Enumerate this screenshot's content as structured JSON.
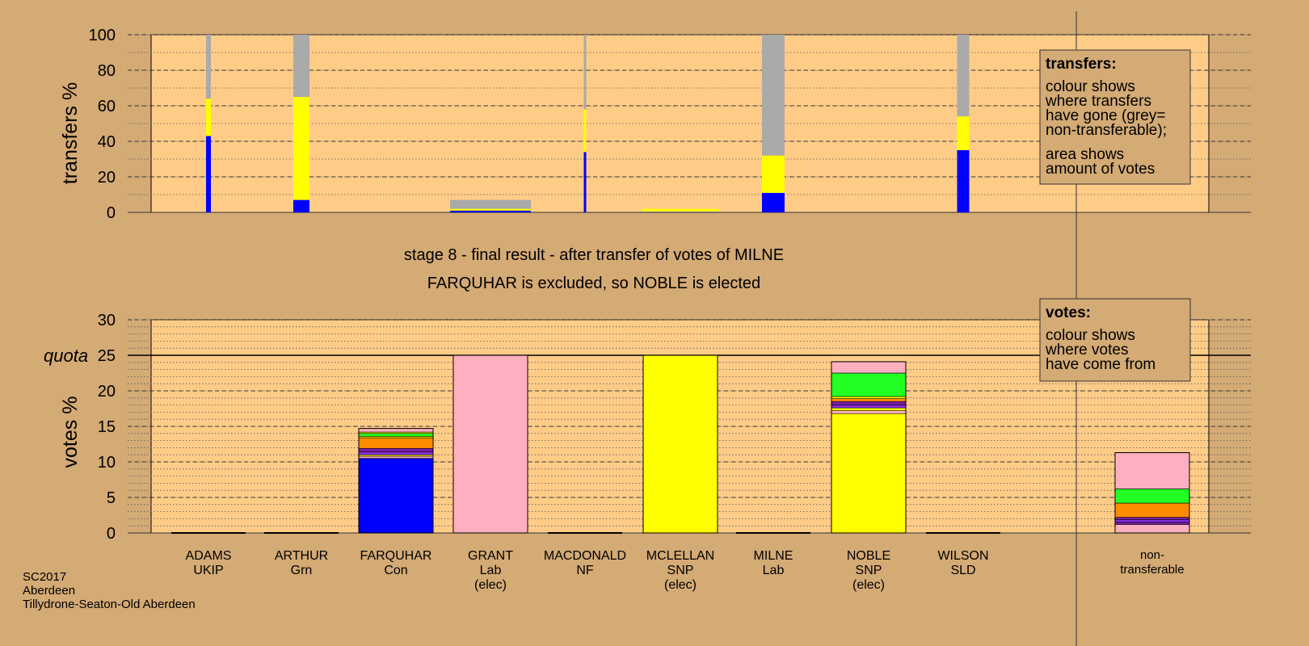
{
  "chart_data": [
    {
      "type": "bar",
      "name": "transfers",
      "ylabel": "transfers %",
      "ylim": [
        0,
        100
      ],
      "yticks": [
        0,
        20,
        40,
        60,
        80,
        100
      ],
      "bars": [
        {
          "candidate": "ADAMS",
          "width_weight": 0.06,
          "segments": [
            {
              "party": "Con",
              "to": 43
            },
            {
              "party": "SNP",
              "to": 64
            },
            {
              "party": "non-transferable",
              "to": 100
            }
          ]
        },
        {
          "candidate": "ARTHUR",
          "width_weight": 0.2,
          "segments": [
            {
              "party": "Con",
              "to": 7
            },
            {
              "party": "SNP",
              "to": 65
            },
            {
              "party": "non-transferable",
              "to": 100
            }
          ]
        },
        {
          "candidate": "GRANT",
          "width_weight": 1.0,
          "segments": [
            {
              "party": "Con",
              "to": 1
            },
            {
              "party": "SNP",
              "to": 2
            },
            {
              "party": "non-transferable",
              "to": 7
            }
          ]
        },
        {
          "candidate": "MACDONALD",
          "width_weight": 0.03,
          "segments": [
            {
              "party": "Con",
              "to": 34
            },
            {
              "party": "SNP",
              "to": 58
            },
            {
              "party": "non-transferable",
              "to": 100
            }
          ]
        },
        {
          "candidate": "MCLELLAN",
          "width_weight": 0.95,
          "segments": [
            {
              "party": "Con",
              "to": 0.3
            },
            {
              "party": "SNP",
              "to": 2
            }
          ]
        },
        {
          "candidate": "MILNE",
          "width_weight": 0.28,
          "segments": [
            {
              "party": "Con",
              "to": 11
            },
            {
              "party": "SNP",
              "to": 32
            },
            {
              "party": "non-transferable",
              "to": 100
            }
          ]
        },
        {
          "candidate": "WILSON",
          "width_weight": 0.15,
          "segments": [
            {
              "party": "Con",
              "to": 35
            },
            {
              "party": "SNP",
              "to": 54
            },
            {
              "party": "non-transferable",
              "to": 100
            }
          ]
        }
      ]
    },
    {
      "type": "bar",
      "name": "votes",
      "ylabel": "votes %",
      "ylim": [
        0,
        30
      ],
      "yticks": [
        0,
        5,
        10,
        15,
        20,
        25,
        30
      ],
      "quota": 25,
      "bars": [
        {
          "candidate": "ADAMS",
          "segments": []
        },
        {
          "candidate": "ARTHUR",
          "segments": []
        },
        {
          "candidate": "FARQUHAR",
          "segments": [
            {
              "party": "Con",
              "to": 10.5
            },
            {
              "party": "Lab",
              "to": 10.8
            },
            {
              "party": "SNP",
              "to": 11.0
            },
            {
              "party": "UKIP",
              "to": 11.4
            },
            {
              "party": "NF",
              "to": 11.9
            },
            {
              "party": "SLD",
              "to": 13.4
            },
            {
              "party": "SNP",
              "to": 13.6
            },
            {
              "party": "Grn",
              "to": 14.0
            },
            {
              "party": "SNP",
              "to": 14.2
            },
            {
              "party": "Lab",
              "to": 14.7
            }
          ]
        },
        {
          "candidate": "GRANT",
          "segments": [
            {
              "party": "Lab",
              "to": 25.0
            }
          ]
        },
        {
          "candidate": "MACDONALD",
          "segments": []
        },
        {
          "candidate": "MCLELLAN",
          "segments": [
            {
              "party": "SNP",
              "to": 25.0
            }
          ]
        },
        {
          "candidate": "MILNE",
          "segments": []
        },
        {
          "candidate": "NOBLE",
          "segments": [
            {
              "party": "SNP",
              "to": 16.8
            },
            {
              "party": "Lab",
              "to": 17.2
            },
            {
              "party": "SNP",
              "to": 17.6
            },
            {
              "party": "UKIP",
              "to": 18.0
            },
            {
              "party": "NF",
              "to": 18.5
            },
            {
              "party": "SLD",
              "to": 18.9
            },
            {
              "party": "SNP",
              "to": 19.2
            },
            {
              "party": "Grn",
              "to": 22.5
            },
            {
              "party": "Lab",
              "to": 24.1
            }
          ]
        },
        {
          "candidate": "WILSON",
          "segments": []
        },
        {
          "candidate": "non-transferable",
          "segments": [
            {
              "party": "Lab",
              "to": 1.2
            },
            {
              "party": "NF",
              "to": 1.5
            },
            {
              "party": "UKIP",
              "to": 1.9
            },
            {
              "party": "NF",
              "to": 2.2
            },
            {
              "party": "SLD",
              "to": 4.2
            },
            {
              "party": "Grn",
              "to": 6.2
            },
            {
              "party": "Lab",
              "to": 11.3
            }
          ]
        }
      ]
    }
  ],
  "colors": {
    "Con": "#0000ff",
    "SNP": "#ffff00",
    "Lab": "#ffb0c0",
    "Grn": "#22ff22",
    "SLD": "#ff8c00",
    "NF": "#7b1fa2",
    "UKIP": "#8a2be2",
    "non-transferable": "#aaaaaa",
    "panel_bg": "#ffcc88",
    "page_bg": "#d4aa75"
  },
  "candidates": [
    {
      "name": "ADAMS",
      "party": "UKIP",
      "note": ""
    },
    {
      "name": "ARTHUR",
      "party": "Grn",
      "note": ""
    },
    {
      "name": "FARQUHAR",
      "party": "Con",
      "note": ""
    },
    {
      "name": "GRANT",
      "party": "Lab",
      "note": "(elec)"
    },
    {
      "name": "MACDONALD",
      "party": "NF",
      "note": ""
    },
    {
      "name": "MCLELLAN",
      "party": "SNP",
      "note": "(elec)"
    },
    {
      "name": "MILNE",
      "party": "Lab",
      "note": ""
    },
    {
      "name": "NOBLE",
      "party": "SNP",
      "note": "(elec)"
    },
    {
      "name": "WILSON",
      "party": "SLD",
      "note": ""
    }
  ],
  "nontransferable_label": [
    "non-",
    "transferable"
  ],
  "stage_title": "stage 8 - final result - after transfer of votes of MILNE",
  "stage_subtitle": "FARQUHAR is excluded, so NOBLE is elected",
  "quota_label": "quota",
  "legend_transfers": {
    "title": "transfers:",
    "lines1": [
      "colour shows",
      "where transfers",
      "have gone (grey=",
      "non-transferable);"
    ],
    "lines2": [
      "area shows",
      "amount of votes"
    ]
  },
  "legend_votes": {
    "title": "votes:",
    "lines": [
      "colour shows",
      "where votes",
      "have come from"
    ]
  },
  "footer": [
    "SC2017",
    "Aberdeen",
    "Tillydrone-Seaton-Old Aberdeen"
  ]
}
